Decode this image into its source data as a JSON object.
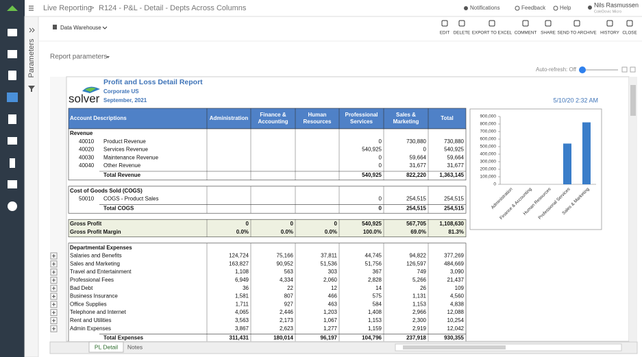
{
  "topbar": {
    "app": "Live Reporting",
    "separator": ">",
    "report_name": "R124 - P&L - Detail - Depts Across Columns",
    "notifications": "Notifications",
    "feedback": "Feedback",
    "help": "Help",
    "user": "Nils Rasmussen",
    "company": "ColeDovic Micro"
  },
  "sidebar": {
    "panel": "Parameters"
  },
  "toolbar": {
    "source": "Data Warehouse",
    "actions": [
      "EDIT",
      "DELETE",
      "EXPORT TO EXCEL",
      "COMMENT",
      "SHARE",
      "SEND TO ARCHIVE",
      "HISTORY",
      "CLOSE"
    ]
  },
  "report_parameters": "Report parameters",
  "auto_refresh": "Auto-refresh: Off",
  "report": {
    "logo": "solver",
    "title": "Profit and Loss Detail Report",
    "entity": "Corporate US",
    "period": "September, 2021",
    "timestamp": "5/10/20 2:32 AM",
    "columns": [
      "Account Descriptions",
      "Administration",
      "Finance & Accounting",
      "Human Resources",
      "Professional Services",
      "Sales & Marketing",
      "Total"
    ],
    "sections": [
      {
        "title": "Revenue",
        "rows": [
          {
            "code": "40010",
            "label": "Product Revenue",
            "cells": [
              null,
              null,
              null,
              "0",
              "730,880",
              "730,880"
            ]
          },
          {
            "code": "40020",
            "label": "Services Revenue",
            "cells": [
              null,
              null,
              null,
              "540,925",
              "0",
              "540,925"
            ]
          },
          {
            "code": "40030",
            "label": "Maintenance Revenue",
            "cells": [
              null,
              null,
              null,
              "0",
              "59,664",
              "59,664"
            ]
          },
          {
            "code": "40040",
            "label": "Other Revenue",
            "cells": [
              null,
              null,
              null,
              "0",
              "31,677",
              "31,677"
            ]
          }
        ],
        "total": {
          "label": "Total Revenue",
          "cells": [
            null,
            null,
            null,
            "540,925",
            "822,220",
            "1,363,145"
          ]
        }
      },
      {
        "title": "Cost of Goods Sold (COGS)",
        "rows": [
          {
            "code": "50010",
            "label": "COGS - Product Sales",
            "cells": [
              null,
              null,
              null,
              "0",
              "254,515",
              "254,515"
            ]
          }
        ],
        "total": {
          "label": "Total COGS",
          "cells": [
            null,
            null,
            null,
            "0",
            "254,515",
            "254,515"
          ]
        }
      },
      {
        "rows": [
          {
            "label": "Gross Profit",
            "cells": [
              "0",
              "0",
              "0",
              "540,925",
              "567,705",
              "1,108,630"
            ]
          },
          {
            "label": "Gross Profit Margin",
            "cells": [
              "0.0%",
              "0.0%",
              "0.0%",
              "100.0%",
              "69.0%",
              "81.3%"
            ]
          }
        ]
      },
      {
        "title": "Departmental Expenses",
        "rows": [
          {
            "label": "Salaries and Benefits",
            "cells": [
              "124,724",
              "75,166",
              "37,811",
              "44,745",
              "94,822",
              "377,269"
            ]
          },
          {
            "label": "Sales and Marketing",
            "cells": [
              "163,827",
              "90,952",
              "51,536",
              "51,756",
              "126,597",
              "484,669"
            ]
          },
          {
            "label": "Travel and Entertainment",
            "cells": [
              "1,108",
              "563",
              "303",
              "367",
              "749",
              "3,090"
            ]
          },
          {
            "label": "Professional Fees",
            "cells": [
              "6,949",
              "4,334",
              "2,060",
              "2,828",
              "5,266",
              "21,437"
            ]
          },
          {
            "label": "Bad Debt",
            "cells": [
              "36",
              "22",
              "12",
              "14",
              "26",
              "109"
            ]
          },
          {
            "label": "Business Insurance",
            "cells": [
              "1,581",
              "807",
              "466",
              "575",
              "1,131",
              "4,560"
            ]
          },
          {
            "label": "Office Supplies",
            "cells": [
              "1,711",
              "927",
              "463",
              "584",
              "1,153",
              "4,838"
            ]
          },
          {
            "label": "Telephone and Internet",
            "cells": [
              "4,065",
              "2,446",
              "1,203",
              "1,408",
              "2,966",
              "12,088"
            ]
          },
          {
            "label": "Rent and Utilities",
            "cells": [
              "3,563",
              "2,173",
              "1,067",
              "1,153",
              "2,300",
              "10,254"
            ]
          },
          {
            "label": "Admin Expenses",
            "cells": [
              "3,867",
              "2,623",
              "1,277",
              "1,159",
              "2,919",
              "12,042"
            ]
          }
        ],
        "total": {
          "label": "Total Expenses",
          "cells": [
            "311,431",
            "180,014",
            "96,197",
            "104,796",
            "237,918",
            "930,355"
          ]
        }
      }
    ]
  },
  "chart_data": {
    "type": "bar",
    "categories": [
      "Administration",
      "Finance & Accounting",
      "Human Resources",
      "Professional Services",
      "Sales & Marketing"
    ],
    "values": [
      0,
      0,
      0,
      540925,
      822220
    ],
    "color": "#3a7dc9",
    "ylim": [
      0,
      900000
    ],
    "yticks": [
      0,
      {
        "value": 100000,
        "label": "100,000"
      },
      {
        "value": 200000,
        "label": "200,000"
      },
      {
        "value": 300000,
        "label": "300,000"
      },
      {
        "value": 400000,
        "label": "400,000"
      },
      {
        "value": 500000,
        "label": "500,000"
      },
      {
        "value": 600000,
        "label": "600,000"
      },
      {
        "value": 700000,
        "label": "700,000"
      },
      {
        "value": 800000,
        "label": "800,000"
      },
      {
        "value": 900000,
        "label": "900,000"
      }
    ]
  },
  "tabs": [
    "PL Detail",
    "Notes"
  ]
}
